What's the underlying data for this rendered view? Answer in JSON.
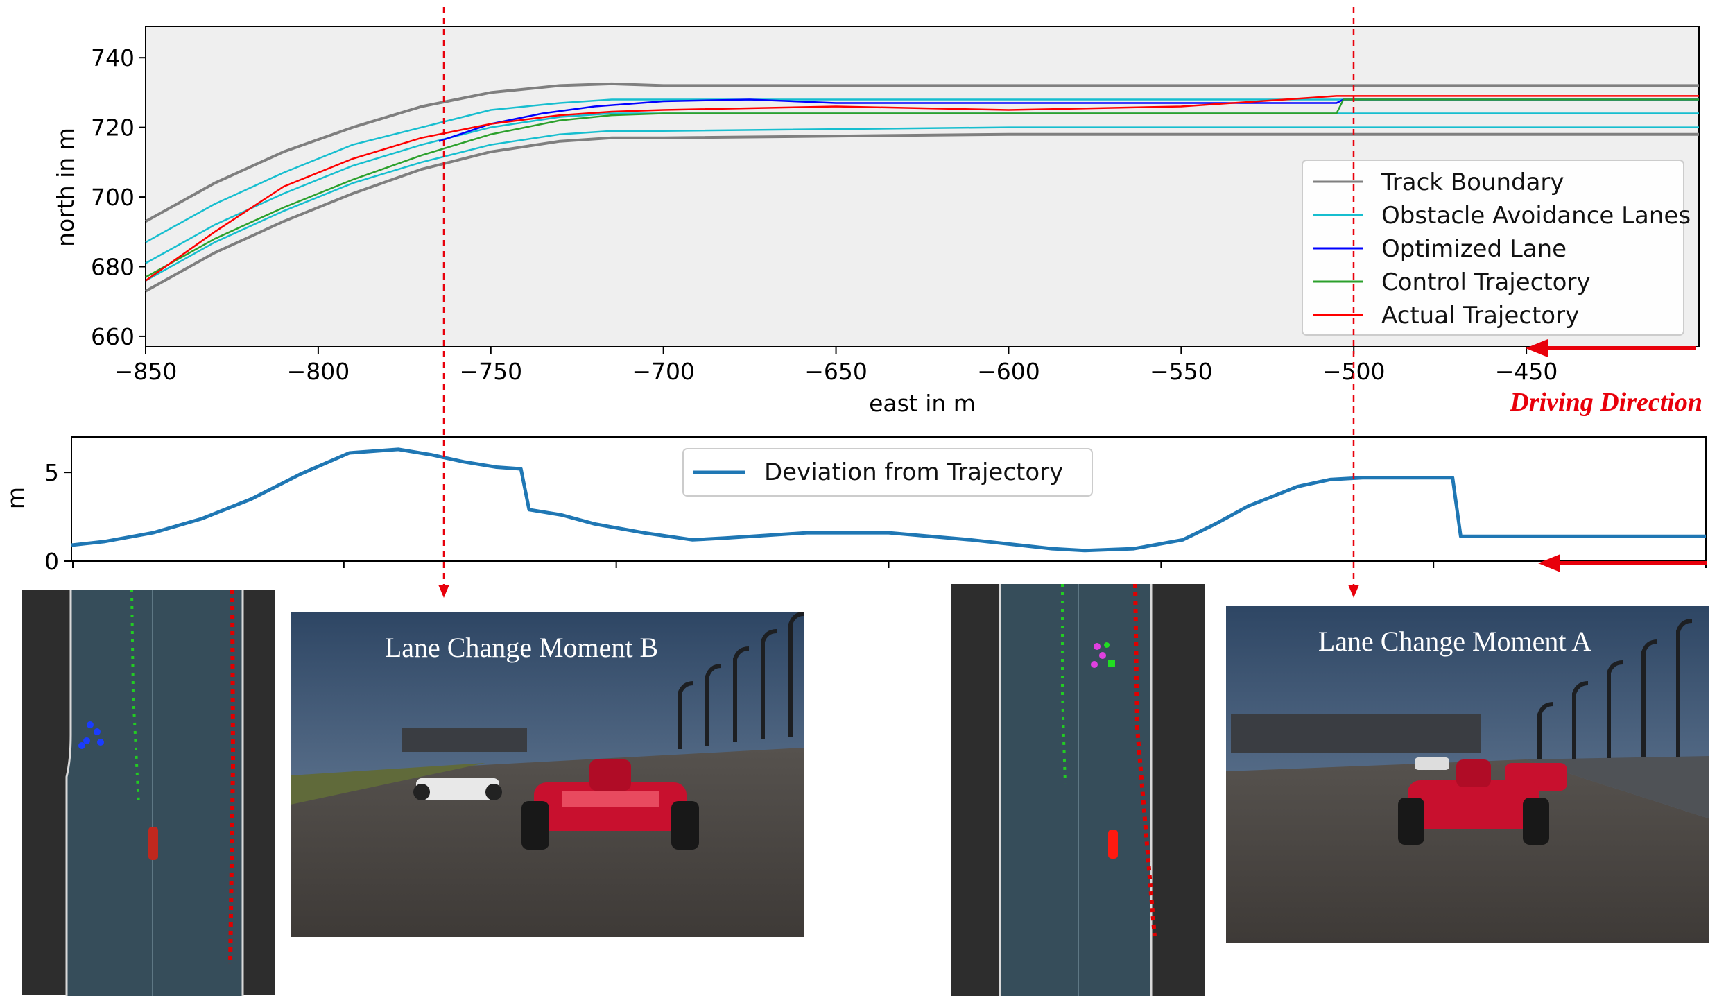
{
  "chart_data": [
    {
      "type": "line",
      "xlabel": "east in m",
      "ylabel": "north in m",
      "xlim": [
        -850,
        -400
      ],
      "ylim": [
        657,
        749
      ],
      "xticks": [
        -850,
        -800,
        -750,
        -700,
        -650,
        -600,
        -550,
        -500,
        -450
      ],
      "yticks": [
        660,
        680,
        700,
        720,
        740
      ],
      "grid": false,
      "legend_position": "lower-right",
      "series": [
        {
          "name": "Track Boundary",
          "color": "#7f7f7f",
          "role": "outer",
          "x": [
            -850,
            -830,
            -810,
            -790,
            -770,
            -750,
            -730,
            -715,
            -700,
            -600,
            -500,
            -400
          ],
          "y": [
            693,
            704,
            713,
            720,
            726,
            730,
            732,
            732.5,
            732,
            732,
            732,
            732
          ]
        },
        {
          "name": "",
          "color": "#7f7f7f",
          "role": "inner",
          "x": [
            -850,
            -830,
            -810,
            -790,
            -770,
            -750,
            -730,
            -715,
            -700,
            -600,
            -500,
            -400
          ],
          "y": [
            673,
            684,
            693,
            701,
            708,
            713,
            716,
            717,
            717,
            718,
            718,
            718
          ]
        },
        {
          "name": "Obstacle Avoidance Lanes",
          "color": "#17becf",
          "x": [
            -850,
            -830,
            -810,
            -790,
            -770,
            -750,
            -730,
            -715,
            -700,
            -600,
            -500,
            -400
          ],
          "y": [
            687,
            698,
            707,
            715,
            720,
            725,
            727,
            728,
            728,
            728,
            728,
            728
          ]
        },
        {
          "name": "",
          "color": "#17becf",
          "x": [
            -850,
            -830,
            -810,
            -790,
            -770,
            -750,
            -730,
            -715,
            -700,
            -600,
            -500,
            -400
          ],
          "y": [
            681,
            692,
            701,
            709,
            715,
            720,
            723,
            724,
            724,
            724,
            724,
            724
          ]
        },
        {
          "name": "",
          "color": "#17becf",
          "x": [
            -850,
            -830,
            -810,
            -790,
            -770,
            -750,
            -730,
            -715,
            -700,
            -600,
            -500,
            -400
          ],
          "y": [
            676,
            687,
            696,
            704,
            710,
            715,
            718,
            719,
            719,
            720,
            720,
            720
          ]
        },
        {
          "name": "Optimized Lane",
          "color": "#0000ff",
          "x": [
            -765,
            -750,
            -735,
            -720,
            -700,
            -675,
            -650,
            -600,
            -550,
            -505,
            -503,
            -480,
            -450,
            -400
          ],
          "y": [
            716,
            721,
            724,
            726,
            727.5,
            728,
            727,
            727,
            727,
            727,
            728,
            728,
            728,
            728
          ]
        },
        {
          "name": "Control Trajectory",
          "color": "#2ca02c",
          "x": [
            -850,
            -830,
            -810,
            -790,
            -770,
            -750,
            -730,
            -715,
            -700,
            -650,
            -600,
            -550,
            -505,
            -503,
            -450,
            -400
          ],
          "y": [
            677,
            688,
            697,
            705,
            712,
            718,
            722,
            723.5,
            724,
            724,
            724,
            724,
            724,
            728,
            728,
            728
          ]
        },
        {
          "name": "Actual Trajectory",
          "color": "#ff0000",
          "x": [
            -850,
            -830,
            -810,
            -790,
            -770,
            -750,
            -730,
            -715,
            -700,
            -650,
            -600,
            -550,
            -520,
            -505,
            -490,
            -450,
            -400
          ],
          "y": [
            676,
            690,
            703,
            711,
            717,
            721,
            723.5,
            724.5,
            725,
            726,
            725,
            726,
            728,
            729,
            729,
            729,
            729
          ]
        }
      ]
    },
    {
      "type": "line",
      "xlabel": "",
      "ylabel": "m",
      "xlim": [
        0,
        1
      ],
      "ylim": [
        0,
        7
      ],
      "yticks": [
        0,
        5
      ],
      "grid": false,
      "legend_position": "top-center",
      "series": [
        {
          "name": "Deviation from Trajectory",
          "color": "#1f77b4",
          "x": [
            0,
            0.02,
            0.05,
            0.08,
            0.11,
            0.14,
            0.17,
            0.2,
            0.22,
            0.24,
            0.26,
            0.275,
            0.28,
            0.3,
            0.32,
            0.35,
            0.38,
            0.4,
            0.45,
            0.5,
            0.55,
            0.58,
            0.6,
            0.62,
            0.65,
            0.68,
            0.7,
            0.72,
            0.75,
            0.77,
            0.79,
            0.81,
            0.83,
            0.845,
            0.85,
            0.9,
            0.95,
            1.0
          ],
          "y": [
            0.9,
            1.1,
            1.6,
            2.4,
            3.5,
            4.9,
            6.1,
            6.3,
            6.0,
            5.6,
            5.3,
            5.2,
            2.9,
            2.6,
            2.1,
            1.6,
            1.2,
            1.3,
            1.6,
            1.6,
            1.2,
            0.9,
            0.7,
            0.6,
            0.7,
            1.2,
            2.1,
            3.1,
            4.2,
            4.6,
            4.7,
            4.7,
            4.7,
            4.7,
            1.4,
            1.4,
            1.4,
            1.4
          ]
        }
      ]
    }
  ],
  "annotations": {
    "driving_direction": "Driving Direction",
    "arrow_color": "#e8000b"
  },
  "panels": {
    "moment_b": {
      "label": "Lane Change Moment B"
    },
    "moment_a": {
      "label": "Lane Change Moment A"
    }
  }
}
